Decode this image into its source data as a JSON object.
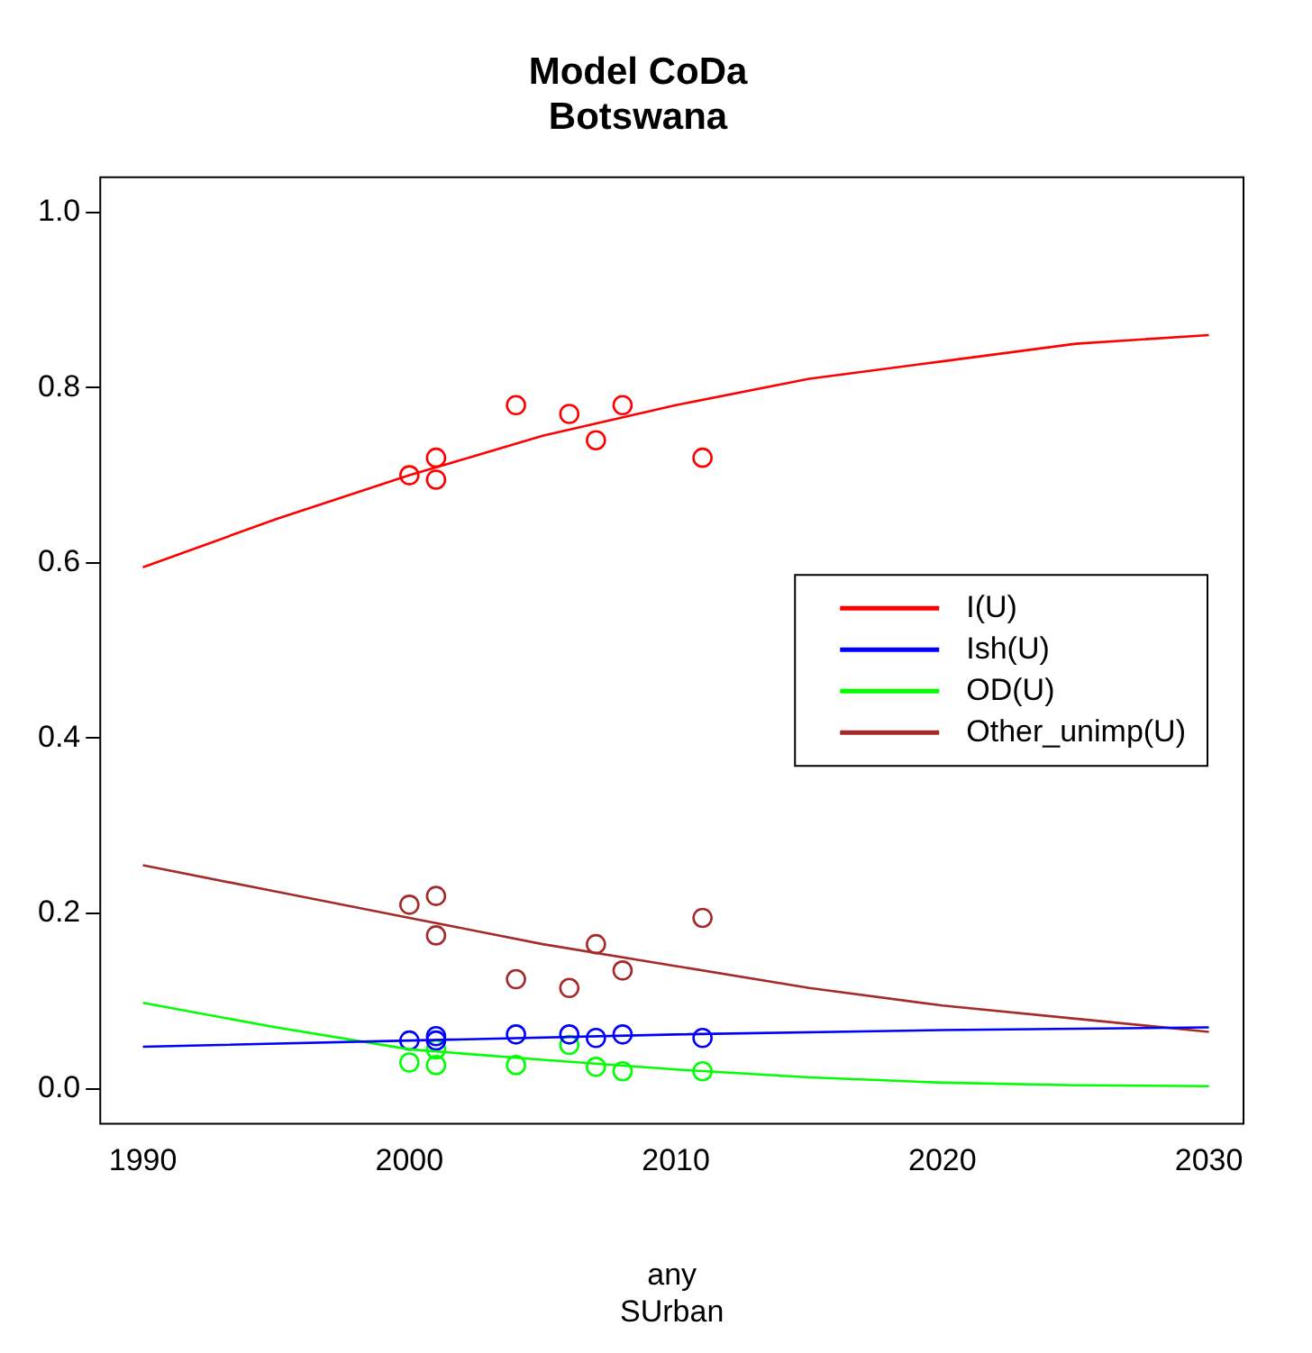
{
  "chart_data": {
    "type": "line",
    "title": "Model CoDa\nBotswana",
    "xlabel": "any\nSUrban",
    "xlim": [
      1988.4,
      2031.3
    ],
    "xticks": [
      1990,
      2000,
      2010,
      2020,
      2030
    ],
    "ylim": [
      -0.04,
      1.04
    ],
    "yticks": [
      {
        "value": 0,
        "label": "0.0"
      },
      0.2,
      0.4,
      0.6,
      0.8,
      {
        "value": 1,
        "label": "1.0"
      }
    ],
    "grid": false,
    "legend": "right",
    "series": [
      {
        "name": "I(U)",
        "color": "#ff0000",
        "marker": "none",
        "x": [
          1990,
          1995,
          2000,
          2005,
          2010,
          2015,
          2020,
          2025,
          2030
        ],
        "values": [
          0.595,
          0.65,
          0.7,
          0.745,
          0.78,
          0.81,
          0.83,
          0.85,
          0.86
        ]
      },
      {
        "name": "Ish(U)",
        "color": "#0000ff",
        "marker": "none",
        "x": [
          1990,
          2000,
          2010,
          2020,
          2030
        ],
        "values": [
          0.048,
          0.055,
          0.062,
          0.067,
          0.07
        ]
      },
      {
        "name": "OD(U)",
        "color": "#00ff00",
        "marker": "none",
        "x": [
          1990,
          1995,
          2000,
          2005,
          2010,
          2015,
          2020,
          2025,
          2030
        ],
        "values": [
          0.098,
          0.07,
          0.045,
          0.033,
          0.022,
          0.013,
          0.007,
          0.004,
          0.003
        ]
      },
      {
        "name": "Other_unimp(U)",
        "color": "#a52a2a",
        "marker": "none",
        "x": [
          1990,
          1995,
          2000,
          2005,
          2010,
          2015,
          2020,
          2025,
          2030
        ],
        "values": [
          0.255,
          0.225,
          0.195,
          0.165,
          0.14,
          0.115,
          0.095,
          0.08,
          0.065
        ]
      },
      {
        "type": "scatter",
        "color": "#ff0000",
        "marker": "circle",
        "x": [
          2000,
          2001,
          2001,
          2004,
          2006,
          2007,
          2008,
          2011
        ],
        "values": [
          0.7,
          0.72,
          0.695,
          0.78,
          0.77,
          0.74,
          0.78,
          0.72
        ]
      },
      {
        "type": "scatter",
        "color": "#0000ff",
        "marker": "circle",
        "x": [
          2000,
          2001,
          2001,
          2004,
          2006,
          2007,
          2008,
          2011
        ],
        "values": [
          0.055,
          0.06,
          0.055,
          0.062,
          0.062,
          0.058,
          0.062,
          0.058
        ]
      },
      {
        "type": "scatter",
        "color": "#00ff00",
        "marker": "circle",
        "x": [
          2000,
          2001,
          2001,
          2004,
          2006,
          2007,
          2008,
          2011
        ],
        "values": [
          0.03,
          0.045,
          0.027,
          0.027,
          0.05,
          0.025,
          0.02,
          0.02
        ]
      },
      {
        "type": "scatter",
        "color": "#a52a2a",
        "marker": "circle",
        "x": [
          2000,
          2001,
          2001,
          2004,
          2006,
          2007,
          2008,
          2011
        ],
        "values": [
          0.21,
          0.22,
          0.175,
          0.125,
          0.115,
          0.165,
          0.135,
          0.195
        ]
      }
    ]
  }
}
